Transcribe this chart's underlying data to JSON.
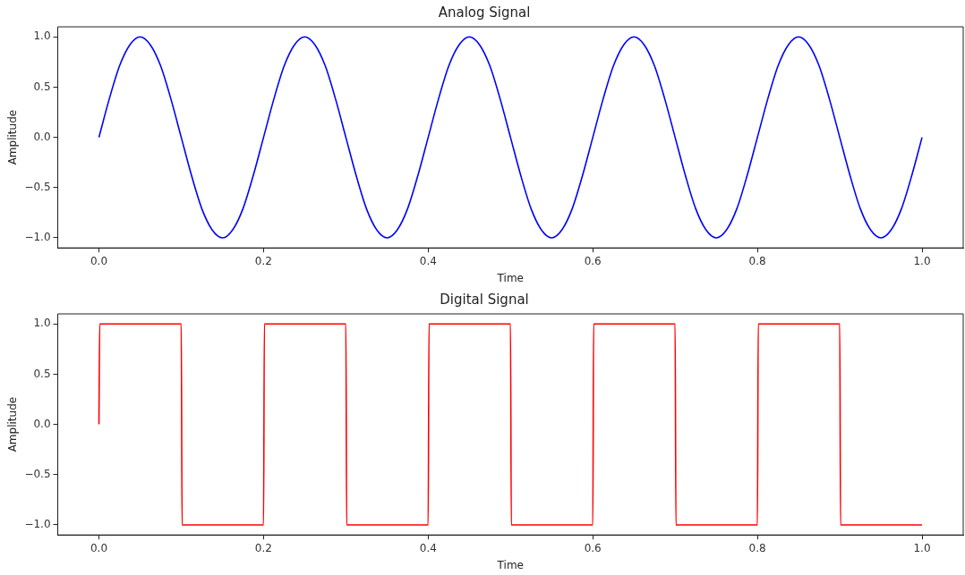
{
  "chart_data": [
    {
      "type": "line",
      "title": "Analog Signal",
      "xlabel": "Time",
      "ylabel": "Amplitude",
      "xlim": [
        -0.05,
        1.05
      ],
      "ylim": [
        -1.1,
        1.1
      ],
      "xticks": [
        {
          "value": 0,
          "label": "0.0"
        },
        {
          "value": 0.2,
          "label": "0.2"
        },
        {
          "value": 0.4,
          "label": "0.4"
        },
        {
          "value": 0.6,
          "label": "0.6"
        },
        {
          "value": 0.8,
          "label": "0.8"
        },
        {
          "value": 1,
          "label": "1.0"
        }
      ],
      "yticks": [
        {
          "value": -1,
          "label": "−1.0"
        },
        {
          "value": -0.5,
          "label": "−0.5"
        },
        {
          "value": 0,
          "label": "0.0"
        },
        {
          "value": 0.5,
          "label": "0.5"
        },
        {
          "value": 1,
          "label": "1.0"
        }
      ],
      "grid": false,
      "marker": "none",
      "line_style": "solid",
      "x": [
        0,
        0.0125,
        0.025,
        0.0375,
        0.05,
        0.0625,
        0.075,
        0.0875,
        0.1,
        0.1125,
        0.125,
        0.1375,
        0.15,
        0.1625,
        0.175,
        0.1875,
        0.2,
        0.2125,
        0.225,
        0.2375,
        0.25,
        0.2625,
        0.275,
        0.2875,
        0.3,
        0.3125,
        0.325,
        0.3375,
        0.35,
        0.3625,
        0.375,
        0.3875,
        0.4,
        0.4125,
        0.425,
        0.4375,
        0.45,
        0.4625,
        0.475,
        0.4875,
        0.5,
        0.5125,
        0.525,
        0.5375,
        0.55,
        0.5625,
        0.575,
        0.5875,
        0.6,
        0.6125,
        0.625,
        0.6375,
        0.65,
        0.6625,
        0.675,
        0.6875,
        0.7,
        0.7125,
        0.725,
        0.7375,
        0.75,
        0.7625,
        0.775,
        0.7875,
        0.8,
        0.8125,
        0.825,
        0.8375,
        0.85,
        0.8625,
        0.875,
        0.8875,
        0.9,
        0.9125,
        0.925,
        0.9375,
        0.95,
        0.9625,
        0.975,
        0.9875,
        1
      ],
      "series": [
        {
          "color": "#0000ff",
          "values": [
            0,
            0.38,
            0.71,
            0.92,
            1,
            0.92,
            0.71,
            0.38,
            0,
            -0.38,
            -0.71,
            -0.92,
            -1,
            -0.92,
            -0.71,
            -0.38,
            0,
            0.38,
            0.71,
            0.92,
            1,
            0.92,
            0.71,
            0.38,
            0,
            -0.38,
            -0.71,
            -0.92,
            -1,
            -0.92,
            -0.71,
            -0.38,
            0,
            0.38,
            0.71,
            0.92,
            1,
            0.92,
            0.71,
            0.38,
            0,
            -0.38,
            -0.71,
            -0.92,
            -1,
            -0.92,
            -0.71,
            -0.38,
            0,
            0.38,
            0.71,
            0.92,
            1,
            0.92,
            0.71,
            0.38,
            0,
            -0.38,
            -0.71,
            -0.92,
            -1,
            -0.92,
            -0.71,
            -0.38,
            0,
            0.38,
            0.71,
            0.92,
            1,
            0.92,
            0.71,
            0.38,
            0,
            -0.38,
            -0.71,
            -0.92,
            -1,
            -0.92,
            -0.71,
            -0.38,
            0
          ]
        }
      ]
    },
    {
      "type": "line",
      "title": "Digital Signal",
      "xlabel": "Time",
      "ylabel": "Amplitude",
      "xlim": [
        -0.05,
        1.05
      ],
      "ylim": [
        -1.1,
        1.1
      ],
      "xticks": [
        {
          "value": 0,
          "label": "0.0"
        },
        {
          "value": 0.2,
          "label": "0.2"
        },
        {
          "value": 0.4,
          "label": "0.4"
        },
        {
          "value": 0.6,
          "label": "0.6"
        },
        {
          "value": 0.8,
          "label": "0.8"
        },
        {
          "value": 1,
          "label": "1.0"
        }
      ],
      "yticks": [
        {
          "value": -1,
          "label": "−1.0"
        },
        {
          "value": -0.5,
          "label": "−0.5"
        },
        {
          "value": 0,
          "label": "0.0"
        },
        {
          "value": 0.5,
          "label": "0.5"
        },
        {
          "value": 1,
          "label": "1.0"
        }
      ],
      "grid": false,
      "marker": "none",
      "line_style": "solid",
      "x": [
        0,
        0.001,
        0.1,
        0.101,
        0.2,
        0.201,
        0.3,
        0.301,
        0.4,
        0.401,
        0.5,
        0.501,
        0.6,
        0.601,
        0.7,
        0.701,
        0.8,
        0.801,
        0.9,
        0.901,
        1
      ],
      "series": [
        {
          "color": "#ff0000",
          "values": [
            0,
            1,
            1,
            -1,
            -1,
            1,
            1,
            -1,
            -1,
            1,
            1,
            -1,
            -1,
            1,
            1,
            -1,
            -1,
            1,
            1,
            -1,
            -1
          ]
        }
      ]
    }
  ]
}
